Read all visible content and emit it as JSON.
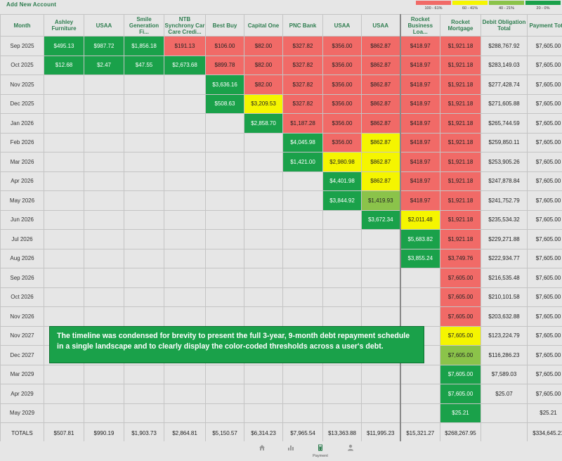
{
  "header": {
    "add_account": "Add New Account"
  },
  "legend": [
    {
      "label": "100 - 61%",
      "color": "#f16a67"
    },
    {
      "label": "60 - 41%",
      "color": "#f5f500"
    },
    {
      "label": "40 - 21%",
      "color": "#8bc34a"
    },
    {
      "label": "20 - 0%",
      "color": "#1aa14a"
    }
  ],
  "columns": [
    "Month",
    "Ashley Furniture",
    "USAA",
    "Smile Generation Fi...",
    "NTB Synchrony Car Care Credi...",
    "Best Buy",
    "Capital One",
    "PNC Bank",
    "USAA",
    "USAA",
    "Rocket Business Loa...",
    "Rocket Mortgage",
    "Debit Obligation Total",
    "Payment Total"
  ],
  "rows": [
    {
      "month": "Sep 2025",
      "cells": [
        [
          "$495.13",
          "g"
        ],
        [
          "$987.72",
          "g"
        ],
        [
          "$1,856.18",
          "g"
        ],
        [
          "$191.13",
          "r"
        ],
        [
          "$106.00",
          "r"
        ],
        [
          "$82.00",
          "r"
        ],
        [
          "$327.82",
          "r"
        ],
        [
          "$356.00",
          "r"
        ],
        [
          "$862.87",
          "r"
        ],
        [
          "$418.97",
          "r"
        ],
        [
          "$1,921.18",
          "r"
        ]
      ],
      "debt": "$288,767.92",
      "pay": "$7,605.00"
    },
    {
      "month": "Oct 2025",
      "cells": [
        [
          "$12.68",
          "g"
        ],
        [
          "$2.47",
          "g"
        ],
        [
          "$47.55",
          "g"
        ],
        [
          "$2,673.68",
          "g"
        ],
        [
          "$899.78",
          "r"
        ],
        [
          "$82.00",
          "r"
        ],
        [
          "$327.82",
          "r"
        ],
        [
          "$356.00",
          "r"
        ],
        [
          "$862.87",
          "r"
        ],
        [
          "$418.97",
          "r"
        ],
        [
          "$1,921.18",
          "r"
        ]
      ],
      "debt": "$283,149.03",
      "pay": "$7,605.00"
    },
    {
      "month": "Nov 2025",
      "cells": [
        [
          "",
          ""
        ],
        [
          "",
          ""
        ],
        [
          "",
          ""
        ],
        [
          "",
          ""
        ],
        [
          "$3,636.16",
          "g"
        ],
        [
          "$82.00",
          "r"
        ],
        [
          "$327.82",
          "r"
        ],
        [
          "$356.00",
          "r"
        ],
        [
          "$862.87",
          "r"
        ],
        [
          "$418.97",
          "r"
        ],
        [
          "$1,921.18",
          "r"
        ]
      ],
      "debt": "$277,428.74",
      "pay": "$7,605.00"
    },
    {
      "month": "Dec 2025",
      "cells": [
        [
          "",
          ""
        ],
        [
          "",
          ""
        ],
        [
          "",
          ""
        ],
        [
          "",
          ""
        ],
        [
          "$508.63",
          "g"
        ],
        [
          "$3,209.53",
          "y"
        ],
        [
          "$327.82",
          "r"
        ],
        [
          "$356.00",
          "r"
        ],
        [
          "$862.87",
          "r"
        ],
        [
          "$418.97",
          "r"
        ],
        [
          "$1,921.18",
          "r"
        ]
      ],
      "debt": "$271,605.88",
      "pay": "$7,605.00"
    },
    {
      "month": "Jan 2026",
      "cells": [
        [
          "",
          ""
        ],
        [
          "",
          ""
        ],
        [
          "",
          ""
        ],
        [
          "",
          ""
        ],
        [
          "",
          ""
        ],
        [
          "$2,858.70",
          "g"
        ],
        [
          "$1,187.28",
          "r"
        ],
        [
          "$356.00",
          "r"
        ],
        [
          "$862.87",
          "r"
        ],
        [
          "$418.97",
          "r"
        ],
        [
          "$1,921.18",
          "r"
        ]
      ],
      "debt": "$265,744.59",
      "pay": "$7,605.00"
    },
    {
      "month": "Feb 2026",
      "cells": [
        [
          "",
          ""
        ],
        [
          "",
          ""
        ],
        [
          "",
          ""
        ],
        [
          "",
          ""
        ],
        [
          "",
          ""
        ],
        [
          "",
          ""
        ],
        [
          "$4,045.98",
          "g"
        ],
        [
          "$356.00",
          "r"
        ],
        [
          "$862.87",
          "y"
        ],
        [
          "$418.97",
          "r"
        ],
        [
          "$1,921.18",
          "r"
        ]
      ],
      "debt": "$259,850.11",
      "pay": "$7,605.00"
    },
    {
      "month": "Mar 2026",
      "cells": [
        [
          "",
          ""
        ],
        [
          "",
          ""
        ],
        [
          "",
          ""
        ],
        [
          "",
          ""
        ],
        [
          "",
          ""
        ],
        [
          "",
          ""
        ],
        [
          "$1,421.00",
          "g"
        ],
        [
          "$2,980.98",
          "y"
        ],
        [
          "$862.87",
          "y"
        ],
        [
          "$418.97",
          "r"
        ],
        [
          "$1,921.18",
          "r"
        ]
      ],
      "debt": "$253,905.26",
      "pay": "$7,605.00"
    },
    {
      "month": "Apr 2026",
      "cells": [
        [
          "",
          ""
        ],
        [
          "",
          ""
        ],
        [
          "",
          ""
        ],
        [
          "",
          ""
        ],
        [
          "",
          ""
        ],
        [
          "",
          ""
        ],
        [
          "",
          ""
        ],
        [
          "$4,401.98",
          "g"
        ],
        [
          "$862.87",
          "y"
        ],
        [
          "$418.97",
          "r"
        ],
        [
          "$1,921.18",
          "r"
        ]
      ],
      "debt": "$247,878.84",
      "pay": "$7,605.00"
    },
    {
      "month": "May 2026",
      "cells": [
        [
          "",
          ""
        ],
        [
          "",
          ""
        ],
        [
          "",
          ""
        ],
        [
          "",
          ""
        ],
        [
          "",
          ""
        ],
        [
          "",
          ""
        ],
        [
          "",
          ""
        ],
        [
          "$3,844.92",
          "g"
        ],
        [
          "$1,419.93",
          "lg"
        ],
        [
          "$418.97",
          "r"
        ],
        [
          "$1,921.18",
          "r"
        ]
      ],
      "debt": "$241,752.79",
      "pay": "$7,605.00"
    },
    {
      "month": "Jun 2026",
      "cells": [
        [
          "",
          ""
        ],
        [
          "",
          ""
        ],
        [
          "",
          ""
        ],
        [
          "",
          ""
        ],
        [
          "",
          ""
        ],
        [
          "",
          ""
        ],
        [
          "",
          ""
        ],
        [
          "",
          ""
        ],
        [
          "$3,672.34",
          "g"
        ],
        [
          "$2,011.48",
          "y"
        ],
        [
          "$1,921.18",
          "r"
        ]
      ],
      "debt": "$235,534.32",
      "pay": "$7,605.00"
    },
    {
      "month": "Jul 2026",
      "cells": [
        [
          "",
          ""
        ],
        [
          "",
          ""
        ],
        [
          "",
          ""
        ],
        [
          "",
          ""
        ],
        [
          "",
          ""
        ],
        [
          "",
          ""
        ],
        [
          "",
          ""
        ],
        [
          "",
          ""
        ],
        [
          "",
          ""
        ],
        [
          "$5,683.82",
          "g"
        ],
        [
          "$1,921.18",
          "r"
        ]
      ],
      "debt": "$229,271.88",
      "pay": "$7,605.00"
    },
    {
      "month": "Aug 2026",
      "cells": [
        [
          "",
          ""
        ],
        [
          "",
          ""
        ],
        [
          "",
          ""
        ],
        [
          "",
          ""
        ],
        [
          "",
          ""
        ],
        [
          "",
          ""
        ],
        [
          "",
          ""
        ],
        [
          "",
          ""
        ],
        [
          "",
          ""
        ],
        [
          "$3,855.24",
          "g"
        ],
        [
          "$3,749.76",
          "r"
        ]
      ],
      "debt": "$222,934.77",
      "pay": "$7,605.00"
    },
    {
      "month": "Sep 2026",
      "cells": [
        [
          "",
          ""
        ],
        [
          "",
          ""
        ],
        [
          "",
          ""
        ],
        [
          "",
          ""
        ],
        [
          "",
          ""
        ],
        [
          "",
          ""
        ],
        [
          "",
          ""
        ],
        [
          "",
          ""
        ],
        [
          "",
          ""
        ],
        [
          "",
          ""
        ],
        [
          "$7,605.00",
          "r"
        ]
      ],
      "debt": "$216,535.48",
      "pay": "$7,605.00"
    },
    {
      "month": "Oct 2026",
      "cells": [
        [
          "",
          ""
        ],
        [
          "",
          ""
        ],
        [
          "",
          ""
        ],
        [
          "",
          ""
        ],
        [
          "",
          ""
        ],
        [
          "",
          ""
        ],
        [
          "",
          ""
        ],
        [
          "",
          ""
        ],
        [
          "",
          ""
        ],
        [
          "",
          ""
        ],
        [
          "$7,605.00",
          "r"
        ]
      ],
      "debt": "$210,101.58",
      "pay": "$7,605.00"
    },
    {
      "month": "Nov 2026",
      "cells": [
        [
          "",
          ""
        ],
        [
          "",
          ""
        ],
        [
          "",
          ""
        ],
        [
          "",
          ""
        ],
        [
          "",
          ""
        ],
        [
          "",
          ""
        ],
        [
          "",
          ""
        ],
        [
          "",
          ""
        ],
        [
          "",
          ""
        ],
        [
          "",
          ""
        ],
        [
          "$7,605.00",
          "r"
        ]
      ],
      "debt": "$203,632.88",
      "pay": "$7,605.00"
    },
    {
      "month": "Nov 2027",
      "cells": [
        [
          "",
          ""
        ],
        [
          "",
          ""
        ],
        [
          "",
          ""
        ],
        [
          "",
          ""
        ],
        [
          "",
          ""
        ],
        [
          "",
          ""
        ],
        [
          "",
          ""
        ],
        [
          "",
          ""
        ],
        [
          "",
          ""
        ],
        [
          "",
          ""
        ],
        [
          "$7,605.00",
          "y"
        ]
      ],
      "debt": "$123,224.79",
      "pay": "$7,605.00"
    },
    {
      "month": "Dec 2027",
      "cells": [
        [
          "",
          ""
        ],
        [
          "",
          ""
        ],
        [
          "",
          ""
        ],
        [
          "",
          ""
        ],
        [
          "",
          ""
        ],
        [
          "",
          ""
        ],
        [
          "",
          ""
        ],
        [
          "",
          ""
        ],
        [
          "",
          ""
        ],
        [
          "",
          ""
        ],
        [
          "$7,605.00",
          "lg"
        ]
      ],
      "debt": "$116,286.23",
      "pay": "$7,605.00"
    },
    {
      "month": "Mar 2029",
      "cells": [
        [
          "",
          ""
        ],
        [
          "",
          ""
        ],
        [
          "",
          ""
        ],
        [
          "",
          ""
        ],
        [
          "",
          ""
        ],
        [
          "",
          ""
        ],
        [
          "",
          ""
        ],
        [
          "",
          ""
        ],
        [
          "",
          ""
        ],
        [
          "",
          ""
        ],
        [
          "$7,605.00",
          "g"
        ]
      ],
      "debt": "$7,589.03",
      "pay": "$7,605.00"
    },
    {
      "month": "Apr 2029",
      "cells": [
        [
          "",
          ""
        ],
        [
          "",
          ""
        ],
        [
          "",
          ""
        ],
        [
          "",
          ""
        ],
        [
          "",
          ""
        ],
        [
          "",
          ""
        ],
        [
          "",
          ""
        ],
        [
          "",
          ""
        ],
        [
          "",
          ""
        ],
        [
          "",
          ""
        ],
        [
          "$7,605.00",
          "g"
        ]
      ],
      "debt": "$25.07",
      "pay": "$7,605.00"
    },
    {
      "month": "May 2029",
      "cells": [
        [
          "",
          ""
        ],
        [
          "",
          ""
        ],
        [
          "",
          ""
        ],
        [
          "",
          ""
        ],
        [
          "",
          ""
        ],
        [
          "",
          ""
        ],
        [
          "",
          ""
        ],
        [
          "",
          ""
        ],
        [
          "",
          ""
        ],
        [
          "",
          ""
        ],
        [
          "$25.21",
          "g"
        ]
      ],
      "debt": "",
      "pay": "$25.21"
    }
  ],
  "totals": [
    "TOTALS",
    "$507.81",
    "$990.19",
    "$1,903.73",
    "$2,864.81",
    "$5,150.57",
    "$6,314.23",
    "$7,965.54",
    "$13,363.88",
    "$11,995.23",
    "$15,321.27",
    "$268,267.95",
    "",
    "$334,645.21"
  ],
  "note": "The timeline was condensed for brevity to present the full 3-year, 9-month debt repayment schedule in a single landscape and to clearly display the color-coded thresholds across a user's debt.",
  "nav": [
    {
      "icon": "home-icon",
      "label": ""
    },
    {
      "icon": "chart-icon",
      "label": ""
    },
    {
      "icon": "calculator-icon",
      "label": "Payment"
    },
    {
      "icon": "person-icon",
      "label": ""
    }
  ]
}
